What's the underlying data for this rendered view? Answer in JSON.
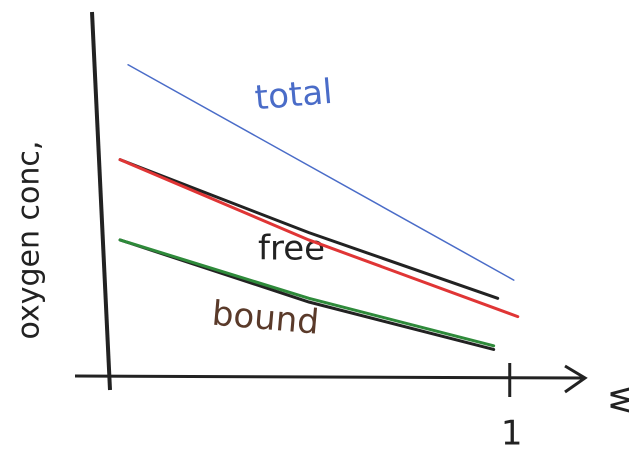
{
  "chart_data": {
    "type": "line",
    "y_label": "oxygen conc,",
    "x_label": "w",
    "xlim": [
      0,
      1.15
    ],
    "xticks": [
      1
    ],
    "ylim": [
      0,
      1
    ],
    "series": [
      {
        "name": "total",
        "color": "#4a6cc8",
        "x": [
          0.05,
          1.01
        ],
        "values": [
          0.85,
          0.26
        ]
      },
      {
        "name": "free",
        "color": "#222222",
        "x": [
          0.03,
          0.5,
          0.97
        ],
        "values": [
          0.59,
          0.39,
          0.21
        ]
      },
      {
        "color": "#e03535",
        "x": [
          0.03,
          0.5,
          1.02
        ],
        "values": [
          0.59,
          0.37,
          0.16
        ]
      },
      {
        "name": "bound",
        "color": "#222222",
        "x": [
          0.03,
          0.5,
          0.96
        ],
        "values": [
          0.37,
          0.2,
          0.07
        ]
      },
      {
        "color": "#2e8a3a",
        "x": [
          0.03,
          0.5,
          0.96
        ],
        "values": [
          0.37,
          0.21,
          0.08
        ]
      }
    ]
  }
}
